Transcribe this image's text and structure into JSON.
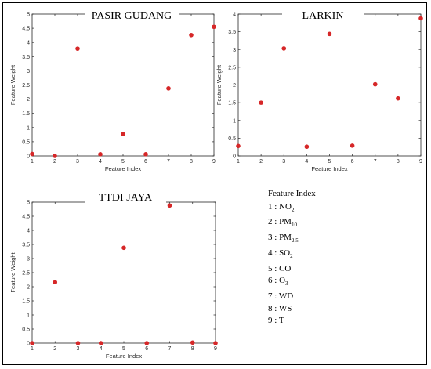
{
  "chart_data": [
    {
      "type": "scatter",
      "title": "PASIR GUDANG",
      "xlabel": "Feature Index",
      "ylabel": "Feature Weight",
      "xlim": [
        1,
        9
      ],
      "ylim": [
        0,
        5
      ],
      "xticks": [
        "1",
        "2",
        "3",
        "4",
        "5",
        "6",
        "7",
        "8",
        "9"
      ],
      "yticks": [
        "0",
        "0.5",
        "1",
        "1.5",
        "2",
        "2.5",
        "3",
        "3.5",
        "4",
        "4.5",
        "5"
      ],
      "x": [
        1,
        2,
        3,
        4,
        5,
        6,
        7,
        8,
        9
      ],
      "y": [
        0.07,
        0.0,
        3.78,
        0.06,
        0.77,
        0.06,
        2.38,
        4.26,
        4.55
      ],
      "marker_color": "#d62728"
    },
    {
      "type": "scatter",
      "title": "LARKIN",
      "xlabel": "Feature Index",
      "ylabel": "Feature Weight",
      "xlim": [
        1,
        9
      ],
      "ylim": [
        0,
        4
      ],
      "xticks": [
        "1",
        "2",
        "3",
        "4",
        "5",
        "6",
        "7",
        "8",
        "9"
      ],
      "yticks": [
        "0",
        "0.5",
        "1",
        "1.5",
        "2",
        "2.5",
        "3",
        "3.5",
        "4"
      ],
      "x": [
        1,
        2,
        3,
        4,
        5,
        6,
        7,
        8,
        9
      ],
      "y": [
        0.28,
        1.5,
        3.03,
        0.26,
        3.44,
        0.29,
        2.02,
        1.62,
        3.88
      ],
      "marker_color": "#d62728"
    },
    {
      "type": "scatter",
      "title": "TTDI JAYA",
      "xlabel": "Feature Index",
      "ylabel": "Feature Weight",
      "xlim": [
        1,
        9
      ],
      "ylim": [
        0,
        5
      ],
      "xticks": [
        "1",
        "2",
        "3",
        "4",
        "5",
        "6",
        "7",
        "8",
        "9"
      ],
      "yticks": [
        "0",
        "0.5",
        "1",
        "1.5",
        "2",
        "2.5",
        "3",
        "3.5",
        "4",
        "4.5",
        "5"
      ],
      "x": [
        1,
        2,
        3,
        4,
        5,
        6,
        7,
        8,
        9
      ],
      "y": [
        0.0,
        2.16,
        0.0,
        0.0,
        3.38,
        0.0,
        4.88,
        0.02,
        0.0
      ],
      "marker_color": "#d62728"
    }
  ],
  "legend": {
    "heading": "Feature Index",
    "items": [
      {
        "num": "1",
        "name": "NO",
        "sub": "2"
      },
      {
        "num": "2",
        "name": "PM",
        "sub": "10"
      },
      {
        "num": "3",
        "name": "PM",
        "sub": "2.5"
      },
      {
        "num": "4",
        "name": "SO",
        "sub": "2"
      },
      {
        "num": "5",
        "name": "CO",
        "sub": ""
      },
      {
        "num": "6",
        "name": "O",
        "sub": "3"
      },
      {
        "num": "7",
        "name": "WD",
        "sub": ""
      },
      {
        "num": "8",
        "name": "WS",
        "sub": ""
      },
      {
        "num": "9",
        "name": "T",
        "sub": ""
      }
    ]
  }
}
